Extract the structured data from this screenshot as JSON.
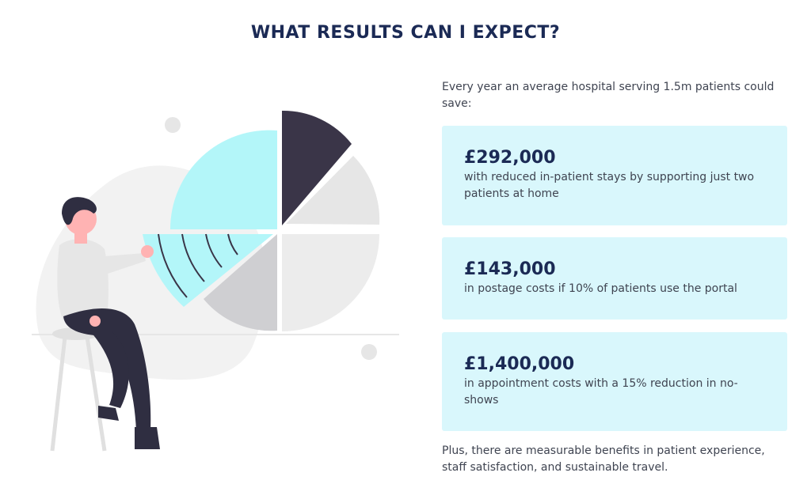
{
  "heading": "WHAT RESULTS CAN I EXPECT?",
  "intro": "Every year an average hospital serving 1.5m patients could save:",
  "cards": [
    {
      "amount": "£292,000",
      "description": "with reduced in-patient stays by supporting just two patients at home"
    },
    {
      "amount": "£143,000",
      "description": "in postage costs if 10% of patients use the portal"
    },
    {
      "amount": "£1,400,000",
      "description": "in appointment costs with a 15% reduction in no-shows"
    }
  ],
  "outro": "Plus, there are measurable benefits in patient experience, staff satisfaction, and sustainable travel.",
  "illustration": {
    "icon": "person-with-pie-chart-illustration",
    "colors": {
      "navy": "#3a3548",
      "cyan": "#b3f6f9",
      "light_gray": "#e6e6e6",
      "mid_gray": "#cfcfd2",
      "blob": "#f2f2f2",
      "skin": "#ffb3b3",
      "hair": "#2f2e41"
    }
  },
  "colors": {
    "heading": "#1b2a55",
    "card_background": "#d9f7fc",
    "body_text": "#3f4451"
  }
}
